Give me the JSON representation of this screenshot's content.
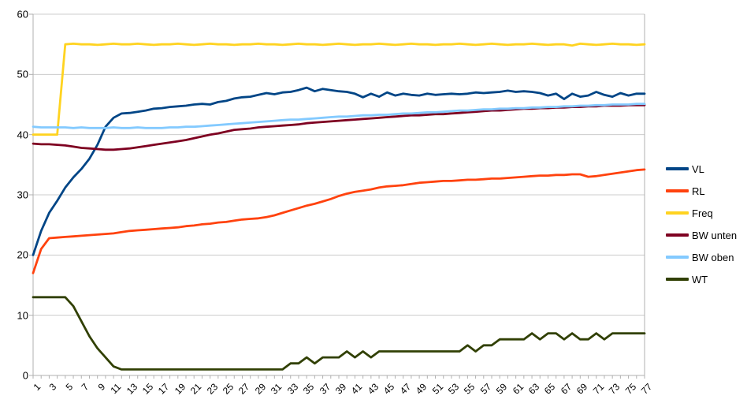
{
  "colors": {
    "background": "#ffffff",
    "gridline": "#cccccc",
    "axis": "#b0b0b0",
    "text": "#000000"
  },
  "legend": {
    "items": [
      {
        "label": "VL",
        "color": "#004586"
      },
      {
        "label": "RL",
        "color": "#ff420e"
      },
      {
        "label": "Freq",
        "color": "#ffd320"
      },
      {
        "label": "BW unten",
        "color": "#7e0021"
      },
      {
        "label": "BW oben",
        "color": "#83caff"
      },
      {
        "label": "WT",
        "color": "#314004"
      }
    ]
  },
  "chart_data": {
    "type": "line",
    "title": "",
    "xlabel": "",
    "ylabel": "",
    "ylim": [
      0,
      60
    ],
    "y_ticks": [
      0,
      10,
      20,
      30,
      40,
      50,
      60
    ],
    "grid": "horizontal",
    "legend_position": "right",
    "x": [
      1,
      2,
      3,
      4,
      5,
      6,
      7,
      8,
      9,
      10,
      11,
      12,
      13,
      14,
      15,
      16,
      17,
      18,
      19,
      20,
      21,
      22,
      23,
      24,
      25,
      26,
      27,
      28,
      29,
      30,
      31,
      32,
      33,
      34,
      35,
      36,
      37,
      38,
      39,
      40,
      41,
      42,
      43,
      44,
      45,
      46,
      47,
      48,
      49,
      50,
      51,
      52,
      53,
      54,
      55,
      56,
      57,
      58,
      59,
      60,
      61,
      62,
      63,
      64,
      65,
      66,
      67,
      68,
      69,
      70,
      71,
      72,
      73,
      74,
      75,
      76,
      77
    ],
    "x_labeled_every": 2,
    "series": [
      {
        "name": "VL",
        "color": "#004586",
        "values": [
          20.0,
          24.0,
          27.0,
          29.0,
          31.2,
          32.9,
          34.3,
          36.0,
          38.3,
          41.3,
          42.8,
          43.5,
          43.6,
          43.8,
          44.0,
          44.3,
          44.4,
          44.6,
          44.7,
          44.8,
          45.0,
          45.1,
          45.0,
          45.4,
          45.6,
          46.0,
          46.2,
          46.3,
          46.6,
          46.9,
          46.7,
          47.0,
          47.1,
          47.4,
          47.8,
          47.2,
          47.6,
          47.4,
          47.2,
          47.1,
          46.8,
          46.2,
          46.8,
          46.3,
          47.0,
          46.5,
          46.8,
          46.6,
          46.5,
          46.8,
          46.6,
          46.7,
          46.8,
          46.7,
          46.8,
          47.0,
          46.9,
          47.0,
          47.1,
          47.3,
          47.1,
          47.2,
          47.1,
          46.9,
          46.5,
          46.8,
          45.9,
          46.8,
          46.3,
          46.5,
          47.1,
          46.6,
          46.3,
          46.9,
          46.5,
          46.8,
          46.8
        ]
      },
      {
        "name": "RL",
        "color": "#ff420e",
        "values": [
          17.0,
          21.0,
          22.8,
          22.9,
          23.0,
          23.1,
          23.2,
          23.3,
          23.4,
          23.5,
          23.6,
          23.8,
          24.0,
          24.1,
          24.2,
          24.3,
          24.4,
          24.5,
          24.6,
          24.8,
          24.9,
          25.1,
          25.2,
          25.4,
          25.5,
          25.7,
          25.9,
          26.0,
          26.1,
          26.3,
          26.6,
          27.0,
          27.4,
          27.8,
          28.2,
          28.5,
          28.9,
          29.3,
          29.8,
          30.2,
          30.5,
          30.7,
          30.9,
          31.2,
          31.4,
          31.5,
          31.6,
          31.8,
          32.0,
          32.1,
          32.2,
          32.3,
          32.3,
          32.4,
          32.5,
          32.5,
          32.6,
          32.7,
          32.7,
          32.8,
          32.9,
          33.0,
          33.1,
          33.2,
          33.2,
          33.3,
          33.3,
          33.4,
          33.4,
          33.0,
          33.1,
          33.3,
          33.5,
          33.7,
          33.9,
          34.1,
          34.2
        ]
      },
      {
        "name": "Freq",
        "color": "#ffd320",
        "values": [
          40.0,
          40.0,
          40.0,
          40.0,
          55.0,
          55.1,
          55.0,
          55.0,
          54.9,
          55.0,
          55.1,
          55.0,
          55.0,
          55.1,
          55.0,
          54.9,
          55.0,
          55.0,
          55.1,
          55.0,
          54.9,
          55.0,
          55.1,
          55.0,
          55.0,
          54.9,
          55.0,
          55.0,
          55.1,
          55.0,
          55.0,
          54.9,
          55.0,
          55.1,
          55.0,
          55.0,
          54.9,
          55.0,
          55.1,
          55.0,
          54.9,
          55.0,
          55.0,
          55.1,
          55.0,
          54.9,
          55.0,
          55.1,
          55.0,
          55.0,
          54.9,
          55.0,
          55.0,
          55.1,
          55.0,
          54.9,
          55.0,
          55.1,
          55.0,
          54.9,
          55.0,
          55.0,
          55.1,
          55.0,
          54.9,
          55.0,
          55.0,
          54.8,
          55.1,
          55.0,
          54.9,
          55.0,
          55.1,
          55.0,
          55.0,
          54.9,
          55.0
        ]
      },
      {
        "name": "BW unten",
        "color": "#7e0021",
        "values": [
          38.5,
          38.4,
          38.4,
          38.3,
          38.2,
          38.0,
          37.8,
          37.7,
          37.6,
          37.5,
          37.5,
          37.6,
          37.7,
          37.9,
          38.1,
          38.3,
          38.5,
          38.7,
          38.9,
          39.1,
          39.4,
          39.7,
          40.0,
          40.2,
          40.5,
          40.8,
          40.9,
          41.0,
          41.2,
          41.3,
          41.4,
          41.5,
          41.6,
          41.7,
          41.9,
          42.0,
          42.1,
          42.2,
          42.3,
          42.4,
          42.5,
          42.6,
          42.7,
          42.8,
          42.9,
          43.0,
          43.1,
          43.2,
          43.2,
          43.3,
          43.4,
          43.4,
          43.5,
          43.6,
          43.7,
          43.8,
          43.9,
          44.0,
          44.0,
          44.1,
          44.2,
          44.3,
          44.3,
          44.4,
          44.4,
          44.5,
          44.5,
          44.6,
          44.6,
          44.7,
          44.7,
          44.8,
          44.8,
          44.8,
          44.9,
          44.9,
          44.9
        ]
      },
      {
        "name": "BW oben",
        "color": "#83caff",
        "values": [
          41.3,
          41.2,
          41.2,
          41.2,
          41.2,
          41.1,
          41.2,
          41.1,
          41.1,
          41.1,
          41.2,
          41.1,
          41.1,
          41.2,
          41.1,
          41.1,
          41.1,
          41.2,
          41.2,
          41.3,
          41.3,
          41.4,
          41.5,
          41.6,
          41.7,
          41.8,
          41.9,
          42.0,
          42.1,
          42.2,
          42.3,
          42.4,
          42.5,
          42.5,
          42.6,
          42.7,
          42.8,
          42.9,
          43.0,
          43.0,
          43.1,
          43.2,
          43.2,
          43.3,
          43.3,
          43.4,
          43.5,
          43.5,
          43.6,
          43.7,
          43.7,
          43.8,
          43.9,
          44.0,
          44.0,
          44.1,
          44.2,
          44.2,
          44.3,
          44.3,
          44.4,
          44.4,
          44.5,
          44.5,
          44.6,
          44.6,
          44.7,
          44.7,
          44.8,
          44.8,
          44.9,
          44.9,
          45.0,
          45.0,
          45.0,
          45.1,
          45.1
        ]
      },
      {
        "name": "WT",
        "color": "#314004",
        "values": [
          13,
          13,
          13,
          13,
          13,
          11.5,
          9,
          6.5,
          4.5,
          3,
          1.5,
          1,
          1,
          1,
          1,
          1,
          1,
          1,
          1,
          1,
          1,
          1,
          1,
          1,
          1,
          1,
          1,
          1,
          1,
          1,
          1,
          1,
          2,
          2,
          3,
          2,
          3,
          3,
          3,
          4,
          3,
          4,
          3,
          4,
          4,
          4,
          4,
          4,
          4,
          4,
          4,
          4,
          4,
          4,
          5,
          4,
          5,
          5,
          6,
          6,
          6,
          6,
          7,
          6,
          7,
          7,
          6,
          7,
          6,
          6,
          7,
          6,
          7,
          7,
          7,
          7,
          7
        ]
      }
    ]
  }
}
